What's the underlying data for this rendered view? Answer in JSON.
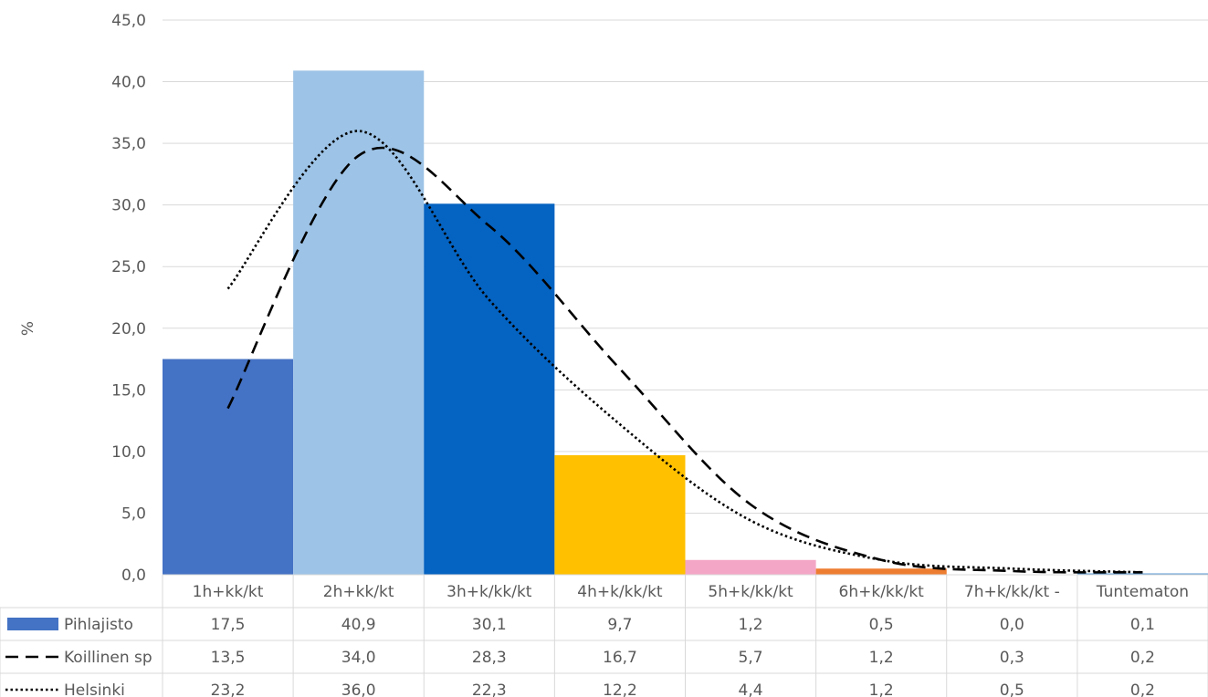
{
  "chart_data": {
    "type": "bar",
    "ylabel": "%",
    "ylim": [
      0,
      45
    ],
    "yticks": [
      "0,0",
      "5,0",
      "10,0",
      "15,0",
      "20,0",
      "25,0",
      "30,0",
      "35,0",
      "40,0",
      "45,0"
    ],
    "grid": true,
    "legend": "data table below chart",
    "categories": [
      "1h+kk/kt",
      "2h+kk/kt",
      "3h+k/kk/kt",
      "4h+k/kk/kt",
      "5h+k/kk/kt",
      "6h+k/kk/kt",
      "7h+k/kk/kt -",
      "Tuntematon"
    ],
    "series": [
      {
        "name": "Pihlajisto",
        "kind": "bar",
        "values": [
          17.5,
          40.9,
          30.1,
          9.7,
          1.2,
          0.5,
          0.0,
          0.1
        ],
        "labels": [
          "17,5",
          "40,9",
          "30,1",
          "9,7",
          "1,2",
          "0,5",
          "0,0",
          "0,1"
        ],
        "colors": [
          "#4472C4",
          "#9DC3E6",
          "#0563C1",
          "#FFC000",
          "#F4A6C6",
          "#ED7D31",
          "#A5A5A5",
          "#5B9BD5"
        ],
        "legend_color": "#4472C4"
      },
      {
        "name": "Koillinen sp",
        "kind": "line",
        "dash": "dashed",
        "values": [
          13.5,
          34.0,
          28.3,
          16.7,
          5.7,
          1.2,
          0.3,
          0.2
        ],
        "labels": [
          "13,5",
          "34,0",
          "28,3",
          "16,7",
          "5,7",
          "1,2",
          "0,3",
          "0,2"
        ],
        "color": "#000000"
      },
      {
        "name": "Helsinki",
        "kind": "line",
        "dash": "dotted",
        "values": [
          23.2,
          36.0,
          22.3,
          12.2,
          4.4,
          1.2,
          0.5,
          0.2
        ],
        "labels": [
          "23,2",
          "36,0",
          "22,3",
          "12,2",
          "4,4",
          "1,2",
          "0,5",
          "0,2"
        ],
        "color": "#000000"
      }
    ]
  }
}
